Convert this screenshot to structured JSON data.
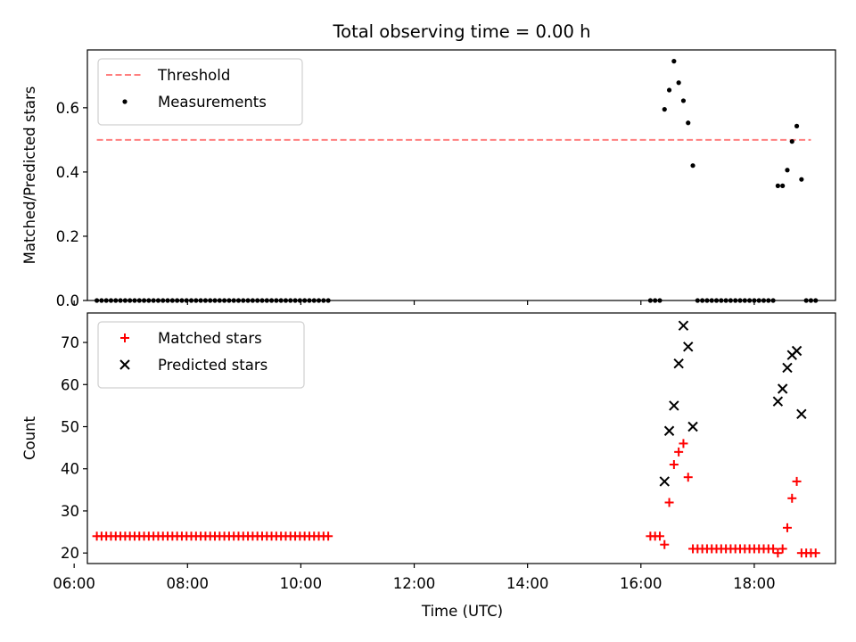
{
  "figure_title": "Total observing time = 0.00 h",
  "chart_data": [
    {
      "type": "scatter",
      "panel": "top",
      "ylabel": "Matched/Predicted stars",
      "ylim": [
        0,
        0.78
      ],
      "yticks": [
        0.0,
        0.2,
        0.4,
        0.6
      ],
      "ytick_labels": [
        "0.0",
        "0.2",
        "0.4",
        "0.6"
      ],
      "xlim": [
        "06:14",
        "19:26"
      ],
      "grid": false,
      "legend_placement": "top-left",
      "threshold": {
        "name": "Threshold",
        "value": 0.5,
        "x_start": "06:24",
        "x_end": "19:00",
        "color": "#ff7f7f",
        "style": "dashed"
      },
      "series": [
        {
          "name": "Measurements",
          "color": "#000000",
          "points": [
            [
              "06:24",
              0
            ],
            [
              "06:29",
              0
            ],
            [
              "06:34",
              0
            ],
            [
              "06:39",
              0
            ],
            [
              "06:44",
              0
            ],
            [
              "06:49",
              0
            ],
            [
              "06:54",
              0
            ],
            [
              "06:59",
              0
            ],
            [
              "07:04",
              0
            ],
            [
              "07:09",
              0
            ],
            [
              "07:14",
              0
            ],
            [
              "07:19",
              0
            ],
            [
              "07:24",
              0
            ],
            [
              "07:29",
              0
            ],
            [
              "07:34",
              0
            ],
            [
              "07:39",
              0
            ],
            [
              "07:44",
              0
            ],
            [
              "07:49",
              0
            ],
            [
              "07:54",
              0
            ],
            [
              "07:59",
              0
            ],
            [
              "08:04",
              0
            ],
            [
              "08:09",
              0
            ],
            [
              "08:14",
              0
            ],
            [
              "08:19",
              0
            ],
            [
              "08:24",
              0
            ],
            [
              "08:29",
              0
            ],
            [
              "08:34",
              0
            ],
            [
              "08:39",
              0
            ],
            [
              "08:44",
              0
            ],
            [
              "08:49",
              0
            ],
            [
              "08:54",
              0
            ],
            [
              "08:59",
              0
            ],
            [
              "09:04",
              0
            ],
            [
              "09:09",
              0
            ],
            [
              "09:14",
              0
            ],
            [
              "09:19",
              0
            ],
            [
              "09:24",
              0
            ],
            [
              "09:29",
              0
            ],
            [
              "09:34",
              0
            ],
            [
              "09:39",
              0
            ],
            [
              "09:44",
              0
            ],
            [
              "09:49",
              0
            ],
            [
              "09:54",
              0
            ],
            [
              "09:59",
              0
            ],
            [
              "10:04",
              0
            ],
            [
              "10:09",
              0
            ],
            [
              "10:14",
              0
            ],
            [
              "10:19",
              0
            ],
            [
              "10:24",
              0
            ],
            [
              "10:29",
              0
            ],
            [
              "16:10",
              0
            ],
            [
              "16:15",
              0
            ],
            [
              "16:20",
              0
            ],
            [
              "16:25",
              0.595
            ],
            [
              "16:30",
              0.655
            ],
            [
              "16:35",
              0.745
            ],
            [
              "16:40",
              0.678
            ],
            [
              "16:45",
              0.622
            ],
            [
              "16:50",
              0.553
            ],
            [
              "16:55",
              0.42
            ],
            [
              "17:00",
              0
            ],
            [
              "17:05",
              0
            ],
            [
              "17:10",
              0
            ],
            [
              "17:15",
              0
            ],
            [
              "17:20",
              0
            ],
            [
              "17:25",
              0
            ],
            [
              "17:30",
              0
            ],
            [
              "17:35",
              0
            ],
            [
              "17:40",
              0
            ],
            [
              "17:45",
              0
            ],
            [
              "17:50",
              0
            ],
            [
              "17:55",
              0
            ],
            [
              "18:00",
              0
            ],
            [
              "18:05",
              0
            ],
            [
              "18:10",
              0
            ],
            [
              "18:15",
              0
            ],
            [
              "18:20",
              0
            ],
            [
              "18:25",
              0.357
            ],
            [
              "18:30",
              0.357
            ],
            [
              "18:35",
              0.406
            ],
            [
              "18:40",
              0.495
            ],
            [
              "18:45",
              0.543
            ],
            [
              "18:50",
              0.377
            ],
            [
              "18:55",
              0
            ],
            [
              "19:00",
              0
            ],
            [
              "19:05",
              0
            ]
          ]
        }
      ]
    },
    {
      "type": "scatter",
      "panel": "bottom",
      "xlabel": "Time (UTC)",
      "ylabel": "Count",
      "ylim": [
        17.5,
        77
      ],
      "yticks": [
        20,
        30,
        40,
        50,
        60,
        70
      ],
      "ytick_labels": [
        "20",
        "30",
        "40",
        "50",
        "60",
        "70"
      ],
      "xlim": [
        "06:14",
        "19:26"
      ],
      "xticks": [
        "06:00",
        "08:00",
        "10:00",
        "12:00",
        "14:00",
        "16:00",
        "18:00"
      ],
      "xtick_labels": [
        "06:00",
        "08:00",
        "10:00",
        "12:00",
        "14:00",
        "16:00",
        "18:00"
      ],
      "grid": false,
      "legend_placement": "top-left",
      "series": [
        {
          "name": "Matched stars",
          "color": "#ff0000",
          "marker": "plus",
          "points": [
            [
              "06:24",
              24
            ],
            [
              "06:29",
              24
            ],
            [
              "06:34",
              24
            ],
            [
              "06:39",
              24
            ],
            [
              "06:44",
              24
            ],
            [
              "06:49",
              24
            ],
            [
              "06:54",
              24
            ],
            [
              "06:59",
              24
            ],
            [
              "07:04",
              24
            ],
            [
              "07:09",
              24
            ],
            [
              "07:14",
              24
            ],
            [
              "07:19",
              24
            ],
            [
              "07:24",
              24
            ],
            [
              "07:29",
              24
            ],
            [
              "07:34",
              24
            ],
            [
              "07:39",
              24
            ],
            [
              "07:44",
              24
            ],
            [
              "07:49",
              24
            ],
            [
              "07:54",
              24
            ],
            [
              "07:59",
              24
            ],
            [
              "08:04",
              24
            ],
            [
              "08:09",
              24
            ],
            [
              "08:14",
              24
            ],
            [
              "08:19",
              24
            ],
            [
              "08:24",
              24
            ],
            [
              "08:29",
              24
            ],
            [
              "08:34",
              24
            ],
            [
              "08:39",
              24
            ],
            [
              "08:44",
              24
            ],
            [
              "08:49",
              24
            ],
            [
              "08:54",
              24
            ],
            [
              "08:59",
              24
            ],
            [
              "09:04",
              24
            ],
            [
              "09:09",
              24
            ],
            [
              "09:14",
              24
            ],
            [
              "09:19",
              24
            ],
            [
              "09:24",
              24
            ],
            [
              "09:29",
              24
            ],
            [
              "09:34",
              24
            ],
            [
              "09:39",
              24
            ],
            [
              "09:44",
              24
            ],
            [
              "09:49",
              24
            ],
            [
              "09:54",
              24
            ],
            [
              "09:59",
              24
            ],
            [
              "10:04",
              24
            ],
            [
              "10:09",
              24
            ],
            [
              "10:14",
              24
            ],
            [
              "10:19",
              24
            ],
            [
              "10:24",
              24
            ],
            [
              "10:29",
              24
            ],
            [
              "16:10",
              24
            ],
            [
              "16:15",
              24
            ],
            [
              "16:20",
              24
            ],
            [
              "16:25",
              22
            ],
            [
              "16:30",
              32
            ],
            [
              "16:35",
              41
            ],
            [
              "16:40",
              44
            ],
            [
              "16:45",
              46
            ],
            [
              "16:50",
              38
            ],
            [
              "16:55",
              21
            ],
            [
              "17:00",
              21
            ],
            [
              "17:05",
              21
            ],
            [
              "17:10",
              21
            ],
            [
              "17:15",
              21
            ],
            [
              "17:20",
              21
            ],
            [
              "17:25",
              21
            ],
            [
              "17:30",
              21
            ],
            [
              "17:35",
              21
            ],
            [
              "17:40",
              21
            ],
            [
              "17:45",
              21
            ],
            [
              "17:50",
              21
            ],
            [
              "17:55",
              21
            ],
            [
              "18:00",
              21
            ],
            [
              "18:05",
              21
            ],
            [
              "18:10",
              21
            ],
            [
              "18:15",
              21
            ],
            [
              "18:20",
              21
            ],
            [
              "18:25",
              20
            ],
            [
              "18:30",
              21
            ],
            [
              "18:35",
              26
            ],
            [
              "18:40",
              33
            ],
            [
              "18:45",
              37
            ],
            [
              "18:50",
              20
            ],
            [
              "18:55",
              20
            ],
            [
              "19:00",
              20
            ],
            [
              "19:05",
              20
            ]
          ]
        },
        {
          "name": "Predicted stars",
          "color": "#000000",
          "marker": "x",
          "points": [
            [
              "16:25",
              37
            ],
            [
              "16:30",
              49
            ],
            [
              "16:35",
              55
            ],
            [
              "16:40",
              65
            ],
            [
              "16:45",
              74
            ],
            [
              "16:50",
              69
            ],
            [
              "16:55",
              50
            ],
            [
              "18:25",
              56
            ],
            [
              "18:30",
              59
            ],
            [
              "18:35",
              64
            ],
            [
              "18:40",
              67
            ],
            [
              "18:45",
              68
            ],
            [
              "18:50",
              53
            ]
          ]
        }
      ]
    }
  ]
}
